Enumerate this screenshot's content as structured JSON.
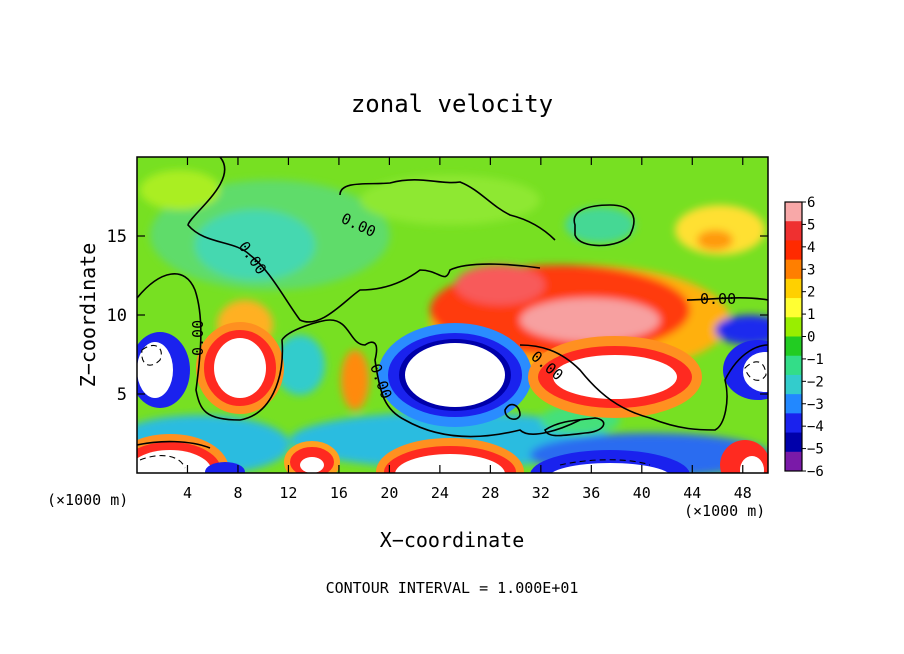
{
  "chart_data": {
    "type": "heatmap",
    "title": "zonal velocity",
    "xlabel": "X−coordinate",
    "ylabel": "Z−coordinate",
    "x_unit": "(×1000 m)",
    "xlim": [
      0,
      50
    ],
    "ylim": [
      0,
      20
    ],
    "x_ticks": [
      "4",
      "8",
      "12",
      "16",
      "20",
      "24",
      "28",
      "32",
      "36",
      "40",
      "44",
      "48"
    ],
    "y_ticks": [
      "5",
      "10",
      "15"
    ],
    "colorbar": {
      "range": [
        -6,
        6
      ],
      "labels": [
        "6",
        "5",
        "4",
        "3",
        "2",
        "1",
        "0",
        "−1",
        "−2",
        "−3",
        "−4",
        "−5",
        "−6"
      ],
      "colors": [
        "#f8a8a8",
        "#ef3030",
        "#ff2a00",
        "#ff7f00",
        "#ffd000",
        "#ffff33",
        "#99ee00",
        "#22cc22",
        "#33dd88",
        "#33cccc",
        "#2288ff",
        "#1a22ee",
        "#0000aa",
        "#7a1aa8"
      ]
    },
    "contour_labels": [
      "0.00",
      "0.00",
      "0.00",
      "0.00",
      "0.00",
      "0.00"
    ],
    "footer": "CONTOUR INTERVAL = 1.000E+01"
  }
}
